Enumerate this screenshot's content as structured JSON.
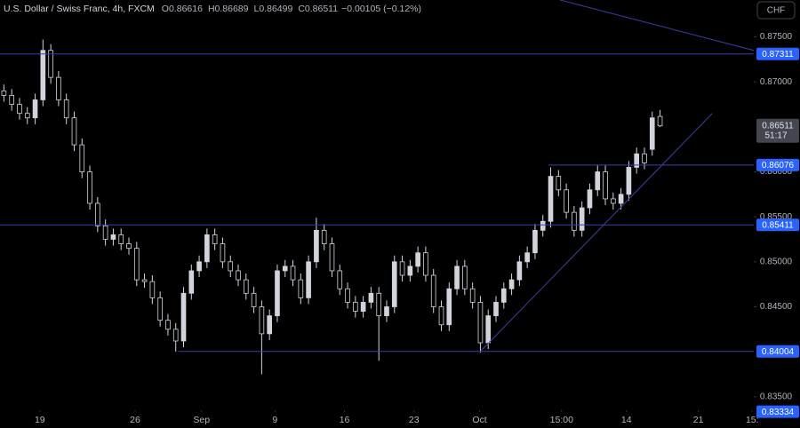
{
  "chart_data": {
    "type": "candlestick",
    "title": "U.S. Dollar / Swiss Franc, 4h, FXCM",
    "header_values": [
      {
        "key": "O",
        "value": 0.86616
      },
      {
        "key": "H",
        "value": 0.86689
      },
      {
        "key": "L",
        "value": 0.86499
      },
      {
        "key": "C",
        "value": 0.86511
      }
    ],
    "change": "−0.00105 (−0.12%)",
    "currency_button": "CHF",
    "candle_color": "#d1d4dc",
    "level_color": "#2962ff",
    "line_color": "#3a3fa8",
    "xlim": [
      -0.5,
      96
    ],
    "ylim": [
      0.8335,
      0.8791
    ],
    "xticks": [
      {
        "value": 4.6,
        "label": "19"
      },
      {
        "value": 16.8,
        "label": "26"
      },
      {
        "value": 25.3,
        "label": "Sep"
      },
      {
        "value": 34.7,
        "label": "9"
      },
      {
        "value": 43.6,
        "label": "16"
      },
      {
        "value": 52.5,
        "label": "23"
      },
      {
        "value": 60.9,
        "label": "Oct"
      },
      {
        "value": 71.4,
        "label": "15:00"
      },
      {
        "value": 79.7,
        "label": "14"
      },
      {
        "value": 88.9,
        "label": "21"
      },
      {
        "value": 95.8,
        "label": "15:"
      }
    ],
    "yticks": [
      {
        "value": 0.875,
        "label": "0.87500"
      },
      {
        "value": 0.87,
        "label": "0.87000"
      },
      {
        "value": 0.86,
        "label": "0.86000"
      },
      {
        "value": 0.855,
        "label": "0.85500"
      },
      {
        "value": 0.85,
        "label": "0.85000"
      },
      {
        "value": 0.845,
        "label": "0.84500"
      },
      {
        "value": 0.835,
        "label": "0.83500"
      }
    ],
    "open": [
      0.869,
      0.8685,
      0.8675,
      0.8665,
      0.866,
      0.868,
      0.8735,
      0.8705,
      0.868,
      0.866,
      0.863,
      0.86,
      0.8565,
      0.854,
      0.8525,
      0.853,
      0.852,
      0.8515,
      0.848,
      0.8478,
      0.846,
      0.8435,
      0.8425,
      0.8412,
      0.8465,
      0.849,
      0.85,
      0.853,
      0.852,
      0.85,
      0.849,
      0.848,
      0.8465,
      0.845,
      0.842,
      0.844,
      0.849,
      0.8495,
      0.848,
      0.846,
      0.85,
      0.8535,
      0.852,
      0.849,
      0.847,
      0.8455,
      0.8445,
      0.8455,
      0.8465,
      0.844,
      0.845,
      0.85,
      0.8485,
      0.8495,
      0.851,
      0.8485,
      0.845,
      0.843,
      0.847,
      0.8495,
      0.847,
      0.8455,
      0.841,
      0.844,
      0.8455,
      0.847,
      0.848,
      0.85,
      0.851,
      0.8535,
      0.8545,
      0.8595,
      0.858,
      0.8555,
      0.8535,
      0.856,
      0.858,
      0.86,
      0.857,
      0.8565,
      0.8575,
      0.8605,
      0.862,
      0.8625,
      0.86616
    ],
    "high": [
      0.8697,
      0.8692,
      0.8682,
      0.8672,
      0.8687,
      0.8747,
      0.8742,
      0.8712,
      0.8687,
      0.8667,
      0.8637,
      0.8607,
      0.8572,
      0.8547,
      0.8537,
      0.8537,
      0.8527,
      0.8522,
      0.8487,
      0.8485,
      0.8467,
      0.8442,
      0.8432,
      0.8472,
      0.8497,
      0.8507,
      0.8537,
      0.8537,
      0.8527,
      0.8507,
      0.8497,
      0.8487,
      0.8472,
      0.8457,
      0.8447,
      0.8497,
      0.8502,
      0.8502,
      0.8487,
      0.8507,
      0.8549,
      0.8542,
      0.8527,
      0.8497,
      0.8477,
      0.8462,
      0.8462,
      0.8472,
      0.8472,
      0.8457,
      0.8507,
      0.8507,
      0.8502,
      0.8517,
      0.8517,
      0.8492,
      0.8457,
      0.8477,
      0.8502,
      0.8502,
      0.8477,
      0.8462,
      0.8447,
      0.8462,
      0.8477,
      0.8487,
      0.8507,
      0.8517,
      0.8542,
      0.8552,
      0.8605,
      0.8602,
      0.8587,
      0.8562,
      0.8567,
      0.8587,
      0.8607,
      0.8607,
      0.8577,
      0.8582,
      0.8612,
      0.8627,
      0.8627,
      0.8667,
      0.86689
    ],
    "low": [
      0.8678,
      0.8668,
      0.8658,
      0.8653,
      0.8653,
      0.8673,
      0.8698,
      0.8673,
      0.8653,
      0.8623,
      0.8593,
      0.8558,
      0.8533,
      0.8518,
      0.8518,
      0.8513,
      0.8508,
      0.8473,
      0.8471,
      0.8453,
      0.8428,
      0.8418,
      0.84,
      0.8405,
      0.8458,
      0.8483,
      0.8493,
      0.8513,
      0.8493,
      0.8483,
      0.8473,
      0.8458,
      0.8443,
      0.8375,
      0.8413,
      0.8433,
      0.8483,
      0.8473,
      0.8453,
      0.8453,
      0.8493,
      0.8513,
      0.8483,
      0.8463,
      0.8448,
      0.8438,
      0.8438,
      0.8448,
      0.839,
      0.8433,
      0.8443,
      0.8478,
      0.8478,
      0.8488,
      0.8478,
      0.8443,
      0.8423,
      0.8423,
      0.8463,
      0.8463,
      0.8448,
      0.8399,
      0.8403,
      0.8433,
      0.8448,
      0.8463,
      0.8473,
      0.8493,
      0.8503,
      0.8528,
      0.8538,
      0.8573,
      0.8548,
      0.8528,
      0.8528,
      0.8553,
      0.8573,
      0.8563,
      0.8558,
      0.8558,
      0.8568,
      0.8598,
      0.8603,
      0.8618,
      0.86499
    ],
    "close": [
      0.8685,
      0.8675,
      0.8665,
      0.866,
      0.868,
      0.8735,
      0.8705,
      0.868,
      0.866,
      0.863,
      0.86,
      0.8565,
      0.854,
      0.8525,
      0.853,
      0.852,
      0.8515,
      0.848,
      0.8478,
      0.846,
      0.8435,
      0.8425,
      0.8412,
      0.8465,
      0.849,
      0.85,
      0.853,
      0.852,
      0.85,
      0.849,
      0.848,
      0.8465,
      0.845,
      0.842,
      0.844,
      0.849,
      0.8495,
      0.848,
      0.846,
      0.85,
      0.8535,
      0.852,
      0.849,
      0.847,
      0.8455,
      0.8445,
      0.8455,
      0.8465,
      0.844,
      0.845,
      0.85,
      0.8485,
      0.8495,
      0.851,
      0.8485,
      0.845,
      0.843,
      0.847,
      0.8495,
      0.847,
      0.8455,
      0.841,
      0.844,
      0.8455,
      0.847,
      0.848,
      0.85,
      0.851,
      0.8535,
      0.8545,
      0.8595,
      0.858,
      0.8555,
      0.8535,
      0.856,
      0.858,
      0.86,
      0.857,
      0.8565,
      0.8575,
      0.8605,
      0.862,
      0.861,
      0.866,
      0.86511
    ],
    "levels": [
      {
        "value": 0.87311,
        "start": -0.5
      },
      {
        "value": 0.86076,
        "start": 69.7
      },
      {
        "value": 0.85411,
        "start": -0.5
      },
      {
        "value": 0.84004,
        "start": 22.3
      }
    ],
    "axis_price_labels": [
      0.83334
    ],
    "trendlines": [
      {
        "x": [
          61.0,
          90.7
        ],
        "y": [
          0.84004,
          0.8665
        ]
      },
      {
        "x": [
          71.2,
          96
        ],
        "y": [
          0.8791,
          0.8735
        ]
      }
    ],
    "last_price": 0.86511,
    "countdown": "51:17"
  }
}
